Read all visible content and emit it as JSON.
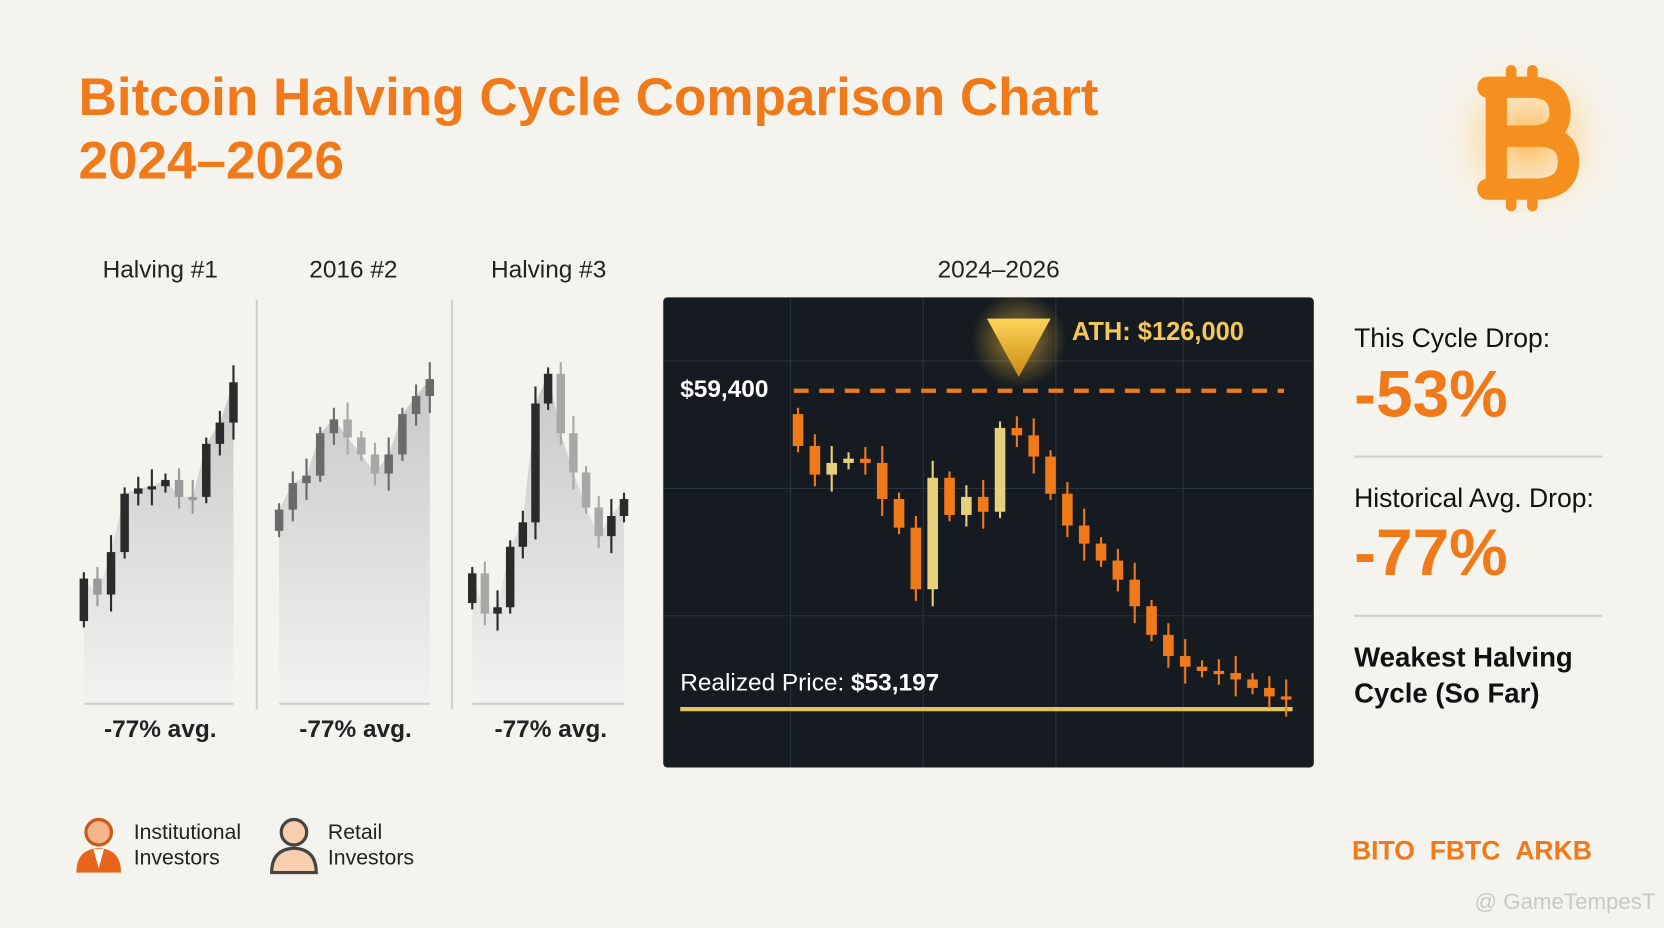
{
  "header": {
    "title": [
      "Bitcoin Halving Cycle Comparison Chart",
      "2024–2026"
    ]
  },
  "panels": [
    {
      "label": "Halving #1",
      "footer": "-77% avg."
    },
    {
      "label": "2016 #2",
      "footer": "-77% avg."
    },
    {
      "label": "Halving #3",
      "footer": "-77% avg."
    }
  ],
  "main_chart": {
    "label": "2024–2026",
    "ath": "ATH: $126,000",
    "level": "$59,400",
    "realized_label": "Realized Price:",
    "realized_value": "$53,197"
  },
  "stats": [
    {
      "label": "This Cycle Drop:",
      "value": "-53%"
    },
    {
      "label": "Historical Avg. Drop:",
      "value": "-77%"
    }
  ],
  "note": [
    "Weakest Halving",
    "Cycle (So Far)"
  ],
  "legend": [
    {
      "label": [
        "Institutional",
        "Investors"
      ]
    },
    {
      "label": [
        "Retail",
        "Investors"
      ]
    }
  ],
  "tickers": [
    "BITO",
    "FBTC",
    "ARKB"
  ],
  "watermark": "@ GameTempesT"
}
